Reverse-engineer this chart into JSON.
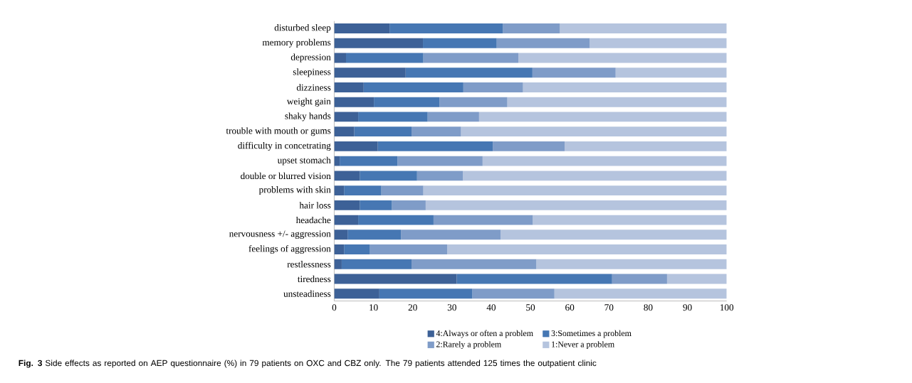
{
  "chart_data": {
    "type": "bar",
    "orientation": "horizontal",
    "stacked": true,
    "categories": [
      "disturbed sleep",
      "memory problems",
      "depression",
      "sleepiness",
      "dizziness",
      "weight gain",
      "shaky hands",
      "trouble with mouth or gums",
      "difficulty in concetrating",
      "upset stomach",
      "double or blurred vision",
      "problems with skin",
      "hair loss",
      "headache",
      "nervousness +/- aggression",
      "feelings of aggression",
      "restlessness",
      "tiredness",
      "unsteadiness"
    ],
    "series": [
      {
        "name": "4:Always or often a problem",
        "color": "#3d6197",
        "values": [
          14.1,
          22.6,
          3.0,
          18.2,
          7.5,
          10.1,
          6.1,
          5.1,
          11.1,
          1.4,
          6.5,
          2.5,
          6.5,
          6.1,
          3.4,
          2.5,
          1.9,
          31.2,
          11.5
        ]
      },
      {
        "name": "3:Sometimes a problem",
        "color": "#4677b3",
        "values": [
          28.9,
          18.8,
          19.7,
          32.3,
          25.4,
          16.7,
          17.7,
          14.6,
          29.3,
          14.7,
          14.6,
          9.5,
          8.2,
          19.2,
          13.6,
          6.6,
          17.8,
          39.6,
          23.7
        ]
      },
      {
        "name": "2:Rarely a problem",
        "color": "#7f9cc8",
        "values": [
          14.5,
          23.7,
          24.2,
          21.2,
          15.2,
          17.3,
          13.1,
          12.6,
          18.3,
          21.7,
          11.7,
          10.7,
          8.6,
          25.3,
          25.4,
          19.7,
          31.8,
          14.0,
          20.9
        ]
      },
      {
        "name": "1:Never a problem",
        "color": "#b5c4de",
        "values": [
          42.5,
          34.9,
          53.1,
          28.3,
          51.9,
          55.9,
          63.1,
          67.7,
          41.3,
          62.2,
          67.2,
          77.3,
          76.7,
          49.4,
          57.6,
          71.2,
          48.5,
          15.2,
          43.9
        ]
      }
    ],
    "xlim": [
      0,
      100
    ],
    "xticks": [
      0,
      10,
      20,
      30,
      40,
      50,
      60,
      70,
      80,
      90,
      100
    ],
    "legend": "bottom",
    "grid": false,
    "annotations": [
      "**Fig. 3** Side effects as reported on AEP questionnaire (%) in 79 patients on OXC and CBZ only. The 79 patients attended 125 times the outpatient clinic"
    ]
  }
}
